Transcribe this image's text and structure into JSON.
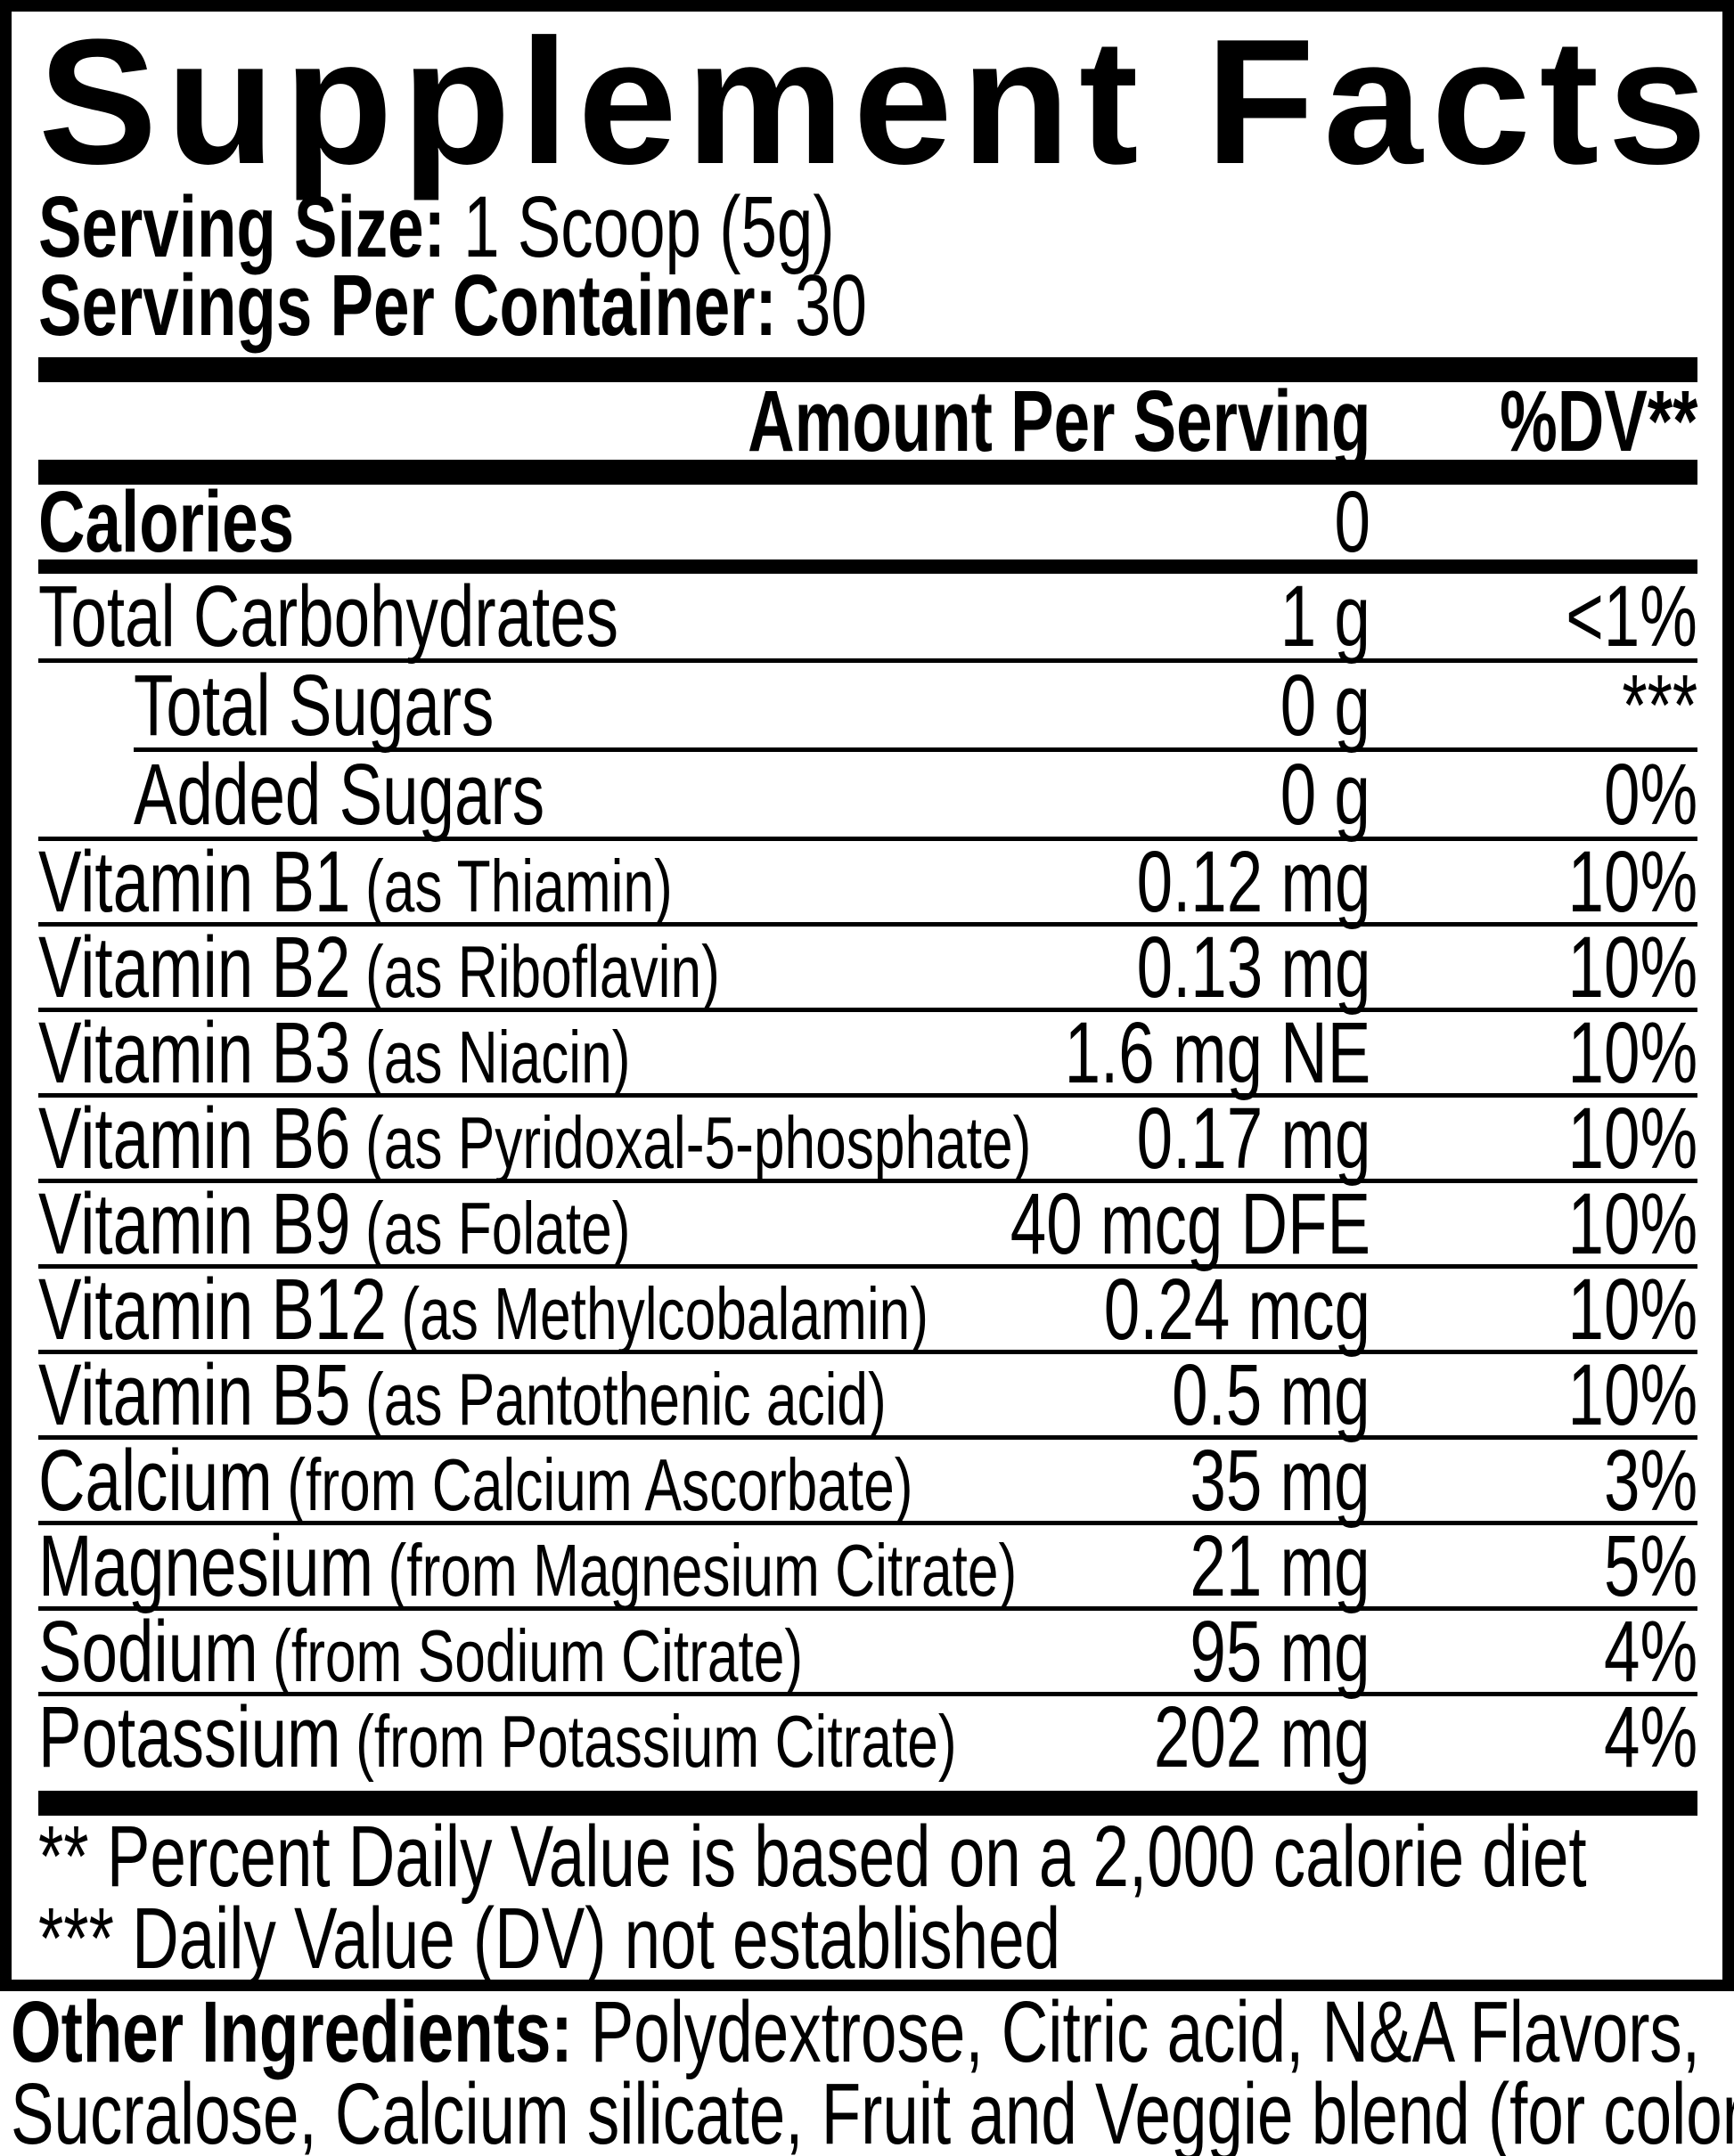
{
  "title": "Supplement Facts",
  "serving": {
    "size_label": "Serving Size:",
    "size_value": "1 Scoop (5g)",
    "servings_label": "Servings Per Container:",
    "servings_value": "30"
  },
  "header": {
    "amount": "Amount Per Serving",
    "dv": "%DV**"
  },
  "rows": [
    {
      "name": "Calories",
      "detail": "",
      "amount": "0",
      "dv": ""
    },
    {
      "name": "Total Carbohydrates",
      "detail": "",
      "amount": "1 g",
      "dv": "<1%"
    },
    {
      "name": "Total Sugars",
      "detail": "",
      "amount": "0 g",
      "dv": "***"
    },
    {
      "name": "Added Sugars",
      "detail": "",
      "amount": "0 g",
      "dv": "0%"
    },
    {
      "name": "Vitamin B1",
      "detail": "(as Thiamin)",
      "amount": "0.12 mg",
      "dv": "10%"
    },
    {
      "name": "Vitamin B2",
      "detail": "(as Riboflavin)",
      "amount": "0.13 mg",
      "dv": "10%"
    },
    {
      "name": "Vitamin B3",
      "detail": "(as Niacin)",
      "amount": "1.6 mg NE",
      "dv": "10%"
    },
    {
      "name": "Vitamin B6",
      "detail": "(as Pyridoxal-5-phosphate)",
      "amount": "0.17 mg",
      "dv": "10%"
    },
    {
      "name": "Vitamin B9",
      "detail": "(as Folate)",
      "amount": "40 mcg DFE",
      "dv": "10%"
    },
    {
      "name": "Vitamin B12",
      "detail": "(as Methylcobalamin)",
      "amount": "0.24 mcg",
      "dv": "10%"
    },
    {
      "name": "Vitamin B5",
      "detail": "(as Pantothenic acid)",
      "amount": "0.5 mg",
      "dv": "10%"
    },
    {
      "name": "Calcium",
      "detail": "(from Calcium Ascorbate)",
      "amount": "35 mg",
      "dv": "3%"
    },
    {
      "name": "Magnesium",
      "detail": "(from Magnesium Citrate)",
      "amount": "21 mg",
      "dv": "5%"
    },
    {
      "name": "Sodium",
      "detail": "(from Sodium Citrate)",
      "amount": "95 mg",
      "dv": "4%"
    },
    {
      "name": "Potassium",
      "detail": "(from Potassium Citrate)",
      "amount": "202 mg",
      "dv": "4%"
    }
  ],
  "footnotes": [
    "** Percent Daily Value is based on a 2,000 calorie diet",
    "*** Daily Value (DV) not established"
  ],
  "other_ingredients": {
    "label": "Other Ingredients:",
    "line1_rest": " Polydextrose, Citric acid, N&A Flavors,",
    "line2": "Sucralose, Calcium silicate, Fruit and Veggie blend (for color)."
  },
  "colors": {
    "ink": "#000000",
    "paper": "#ffffff"
  }
}
